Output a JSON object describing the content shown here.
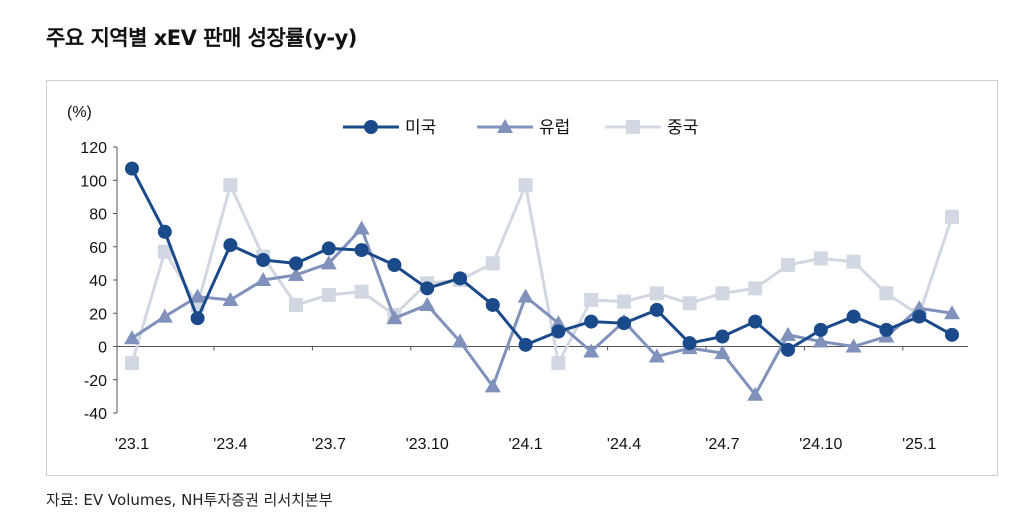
{
  "title": "주요 지역별 xEV 판매 성장률(y-y)",
  "source": "자료: EV Volumes, NH투자증권 리서치본부",
  "chart_data": {
    "type": "line",
    "unit_label": "(%)",
    "ylim": [
      -40,
      120
    ],
    "yticks": [
      120,
      100,
      80,
      60,
      40,
      20,
      0,
      -20,
      -40
    ],
    "xtick_labels": [
      {
        "index": 0,
        "label": "'23.1"
      },
      {
        "index": 3,
        "label": "'23.4"
      },
      {
        "index": 6,
        "label": "'23.7"
      },
      {
        "index": 9,
        "label": "'23.10"
      },
      {
        "index": 12,
        "label": "'24.1"
      },
      {
        "index": 15,
        "label": "'24.4"
      },
      {
        "index": 18,
        "label": "'24.7"
      },
      {
        "index": 21,
        "label": "'24.10"
      },
      {
        "index": 24,
        "label": "'25.1"
      }
    ],
    "x_count": 26,
    "legend_position": "top-center",
    "grid": false,
    "series": [
      {
        "name": "미국",
        "color": "#1a4a8a",
        "marker": "circle",
        "values": [
          107,
          69,
          17,
          61,
          52,
          50,
          59,
          58,
          49,
          35,
          41,
          25,
          1,
          9,
          15,
          14,
          22,
          2,
          6,
          15,
          -2,
          10,
          18,
          10,
          18,
          7
        ]
      },
      {
        "name": "유럽",
        "color": "#8092bc",
        "marker": "triangle",
        "values": [
          5,
          18,
          30,
          28,
          40,
          43,
          50,
          71,
          17,
          25,
          3,
          -24,
          30,
          14,
          -3,
          15,
          -6,
          -1,
          -4,
          -29,
          7,
          3,
          0,
          6,
          23,
          20
        ]
      },
      {
        "name": "중국",
        "color": "#d2d8e2",
        "marker": "square",
        "values": [
          -10,
          57,
          25,
          97,
          54,
          25,
          31,
          33,
          19,
          38,
          40,
          50,
          97,
          -10,
          28,
          27,
          32,
          26,
          32,
          35,
          49,
          53,
          51,
          32,
          19,
          78
        ]
      }
    ]
  }
}
